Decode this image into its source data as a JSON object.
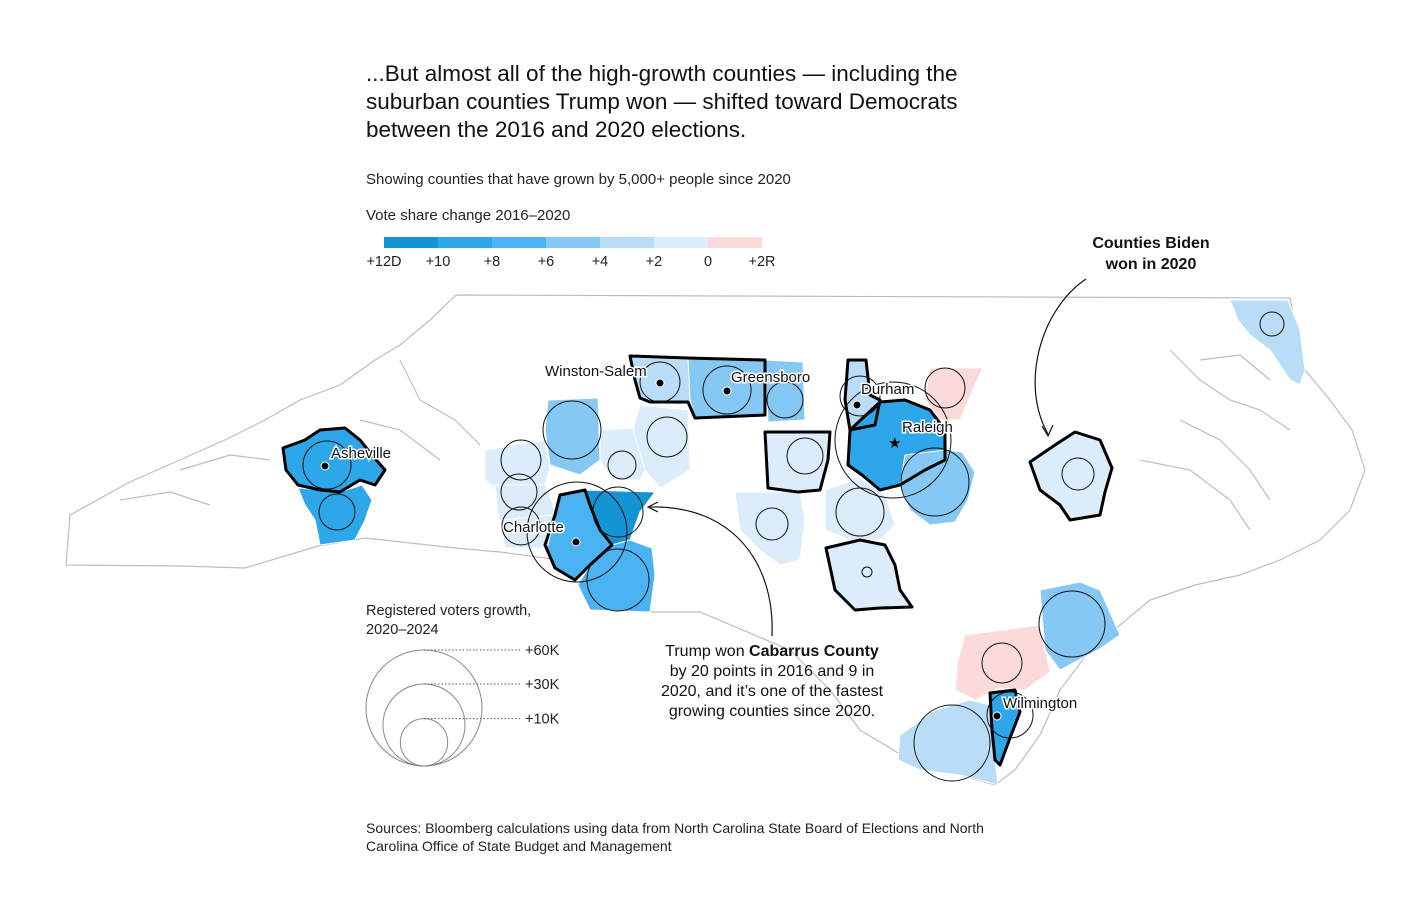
{
  "title_lines": [
    "...But almost all of the high-growth counties — including the",
    "suburban counties Trump won — shifted toward Democrats",
    "between the 2016 and 2020 elections."
  ],
  "subtitle": "Showing counties that have grown by 5,000+ people since 2020",
  "color_legend": {
    "title": "Vote share change 2016–2020",
    "bins": [
      {
        "color": "#1594d4",
        "label": "+12D"
      },
      {
        "color": "#2ea6ea",
        "label": "+10"
      },
      {
        "color": "#4cb3f2",
        "label": "+8"
      },
      {
        "color": "#86c8f4",
        "label": "+6"
      },
      {
        "color": "#b9ddf7",
        "label": "+4"
      },
      {
        "color": "#dcecfb",
        "label": "+2"
      },
      {
        "color": "#fbdada",
        "label": "0"
      }
    ],
    "end_label": "+2R"
  },
  "size_legend": {
    "title_lines": [
      "Registered voters growth,",
      "2020–2024"
    ],
    "items": [
      {
        "label": "+60K",
        "value": 60000
      },
      {
        "label": "+30K",
        "value": 30000
      },
      {
        "label": "+10K",
        "value": 10000
      }
    ]
  },
  "cities": {
    "asheville": "Asheville",
    "winston_salem": "Winston-Salem",
    "greensboro": "Greensboro",
    "durham": "Durham",
    "raleigh": "Raleigh",
    "charlotte": "Charlotte",
    "wilmington": "Wilmington"
  },
  "annotations": {
    "biden_lines": [
      "Counties Biden",
      "won in 2020"
    ],
    "cabarrus": {
      "line1_pre": "Trump won ",
      "line1_bold": "Cabarrus County",
      "lines": [
        "by 20 points in 2016 and 9 in",
        "2020, and it’s one of the fastest",
        "growing counties since 2020."
      ]
    }
  },
  "sources_lines": [
    "Sources: Bloomberg calculations using data from North Carolina State Board of Elections and North",
    "Carolina Office of State Budget and Management"
  ]
}
